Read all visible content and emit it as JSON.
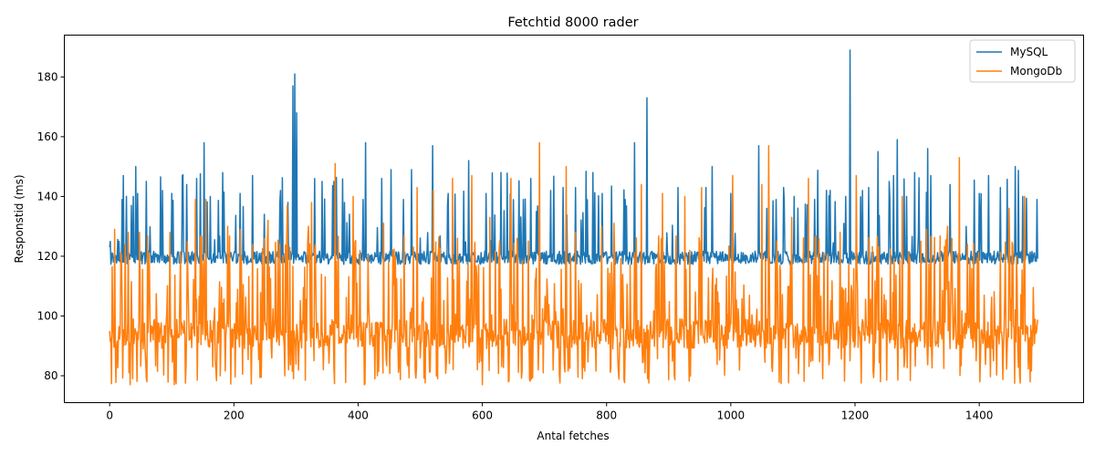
{
  "chart_data": {
    "type": "line",
    "title": "Fetchtid 8000 rader",
    "xlabel": "Antal fetches",
    "ylabel": "Responstid (ms)",
    "xlim": [
      -73,
      1568
    ],
    "ylim": [
      71,
      194
    ],
    "xticks": [
      0,
      200,
      400,
      600,
      800,
      1000,
      1200,
      1400
    ],
    "yticks": [
      80,
      100,
      120,
      140,
      160,
      180
    ],
    "grid": false,
    "legend_position": "top-right",
    "series": [
      {
        "name": "MySQL",
        "color": "#1f77b4",
        "generated": {
          "count": 1495,
          "seed": 13,
          "base": 119.5,
          "noise": 2.2,
          "spike_prob": 0.06,
          "spike_range": [
            124,
            150
          ]
        },
        "points": [
          [
            0,
            123
          ],
          [
            15,
            125
          ],
          [
            20,
            139
          ],
          [
            22,
            147
          ],
          [
            27,
            140
          ],
          [
            35,
            137
          ],
          [
            38,
            140
          ],
          [
            42,
            150
          ],
          [
            45,
            141
          ],
          [
            85,
            142
          ],
          [
            100,
            141
          ],
          [
            117,
            147
          ],
          [
            124,
            144
          ],
          [
            140,
            146
          ],
          [
            152,
            158
          ],
          [
            162,
            140
          ],
          [
            182,
            148
          ],
          [
            210,
            141
          ],
          [
            230,
            147
          ],
          [
            275,
            142
          ],
          [
            287,
            138
          ],
          [
            295,
            177
          ],
          [
            298,
            181
          ],
          [
            301,
            168
          ],
          [
            330,
            146
          ],
          [
            342,
            145
          ],
          [
            361,
            145
          ],
          [
            378,
            138
          ],
          [
            408,
            139
          ],
          [
            412,
            158
          ],
          [
            438,
            146
          ],
          [
            453,
            149
          ],
          [
            473,
            139
          ],
          [
            486,
            149
          ],
          [
            520,
            157
          ],
          [
            545,
            141
          ],
          [
            578,
            152
          ],
          [
            606,
            141
          ],
          [
            630,
            148
          ],
          [
            666,
            139
          ],
          [
            678,
            146
          ],
          [
            710,
            142
          ],
          [
            730,
            143
          ],
          [
            750,
            143
          ],
          [
            778,
            148
          ],
          [
            793,
            141
          ],
          [
            830,
            139
          ],
          [
            845,
            158
          ],
          [
            865,
            173
          ],
          [
            915,
            143
          ],
          [
            960,
            143
          ],
          [
            970,
            150
          ],
          [
            1000,
            141
          ],
          [
            1045,
            157
          ],
          [
            1085,
            143
          ],
          [
            1102,
            140
          ],
          [
            1135,
            139
          ],
          [
            1160,
            142
          ],
          [
            1185,
            140
          ],
          [
            1192,
            189
          ],
          [
            1212,
            142
          ],
          [
            1222,
            143
          ],
          [
            1237,
            155
          ],
          [
            1255,
            145
          ],
          [
            1262,
            147
          ],
          [
            1268,
            159
          ],
          [
            1283,
            140
          ],
          [
            1296,
            148
          ],
          [
            1317,
            156
          ],
          [
            1322,
            147
          ],
          [
            1353,
            144
          ],
          [
            1400,
            141
          ],
          [
            1415,
            147
          ],
          [
            1434,
            143
          ],
          [
            1458,
            150
          ],
          [
            1470,
            140
          ],
          [
            1493,
            139
          ]
        ]
      },
      {
        "name": "MongoDb",
        "color": "#ff7f0e",
        "generated": {
          "count": 1495,
          "seed": 29,
          "base": 94,
          "noise": 5,
          "spike_prob": 0.22,
          "spike_range": [
            100,
            127
          ],
          "dip_prob": 0.12,
          "dip_range": [
            77,
            86
          ]
        },
        "points": [
          [
            0,
            95
          ],
          [
            8,
            129
          ],
          [
            30,
            128
          ],
          [
            33,
            77
          ],
          [
            48,
            128
          ],
          [
            60,
            78
          ],
          [
            97,
            128
          ],
          [
            138,
            139
          ],
          [
            155,
            139
          ],
          [
            190,
            130
          ],
          [
            210,
            129
          ],
          [
            255,
            132
          ],
          [
            286,
            137
          ],
          [
            296,
            79
          ],
          [
            320,
            130
          ],
          [
            325,
            138
          ],
          [
            363,
            151
          ],
          [
            392,
            140
          ],
          [
            410,
            77
          ],
          [
            441,
            131
          ],
          [
            495,
            143
          ],
          [
            521,
            142
          ],
          [
            528,
            79
          ],
          [
            552,
            146
          ],
          [
            583,
            147
          ],
          [
            600,
            77
          ],
          [
            612,
            133
          ],
          [
            646,
            146
          ],
          [
            692,
            158
          ],
          [
            698,
            81
          ],
          [
            735,
            150
          ],
          [
            750,
            128
          ],
          [
            761,
            79
          ],
          [
            792,
            130
          ],
          [
            812,
            131
          ],
          [
            856,
            144
          ],
          [
            866,
            79
          ],
          [
            890,
            141
          ],
          [
            926,
            140
          ],
          [
            953,
            143
          ],
          [
            1003,
            147
          ],
          [
            1050,
            144
          ],
          [
            1061,
            157
          ],
          [
            1098,
            133
          ],
          [
            1125,
            146
          ],
          [
            1148,
            79
          ],
          [
            1176,
            128
          ],
          [
            1202,
            147
          ],
          [
            1241,
            78
          ],
          [
            1276,
            140
          ],
          [
            1315,
            129
          ],
          [
            1349,
            130
          ],
          [
            1368,
            153
          ],
          [
            1401,
            78
          ],
          [
            1448,
            136
          ],
          [
            1473,
            140
          ],
          [
            1482,
            78
          ],
          [
            1495,
            127
          ]
        ]
      }
    ]
  }
}
